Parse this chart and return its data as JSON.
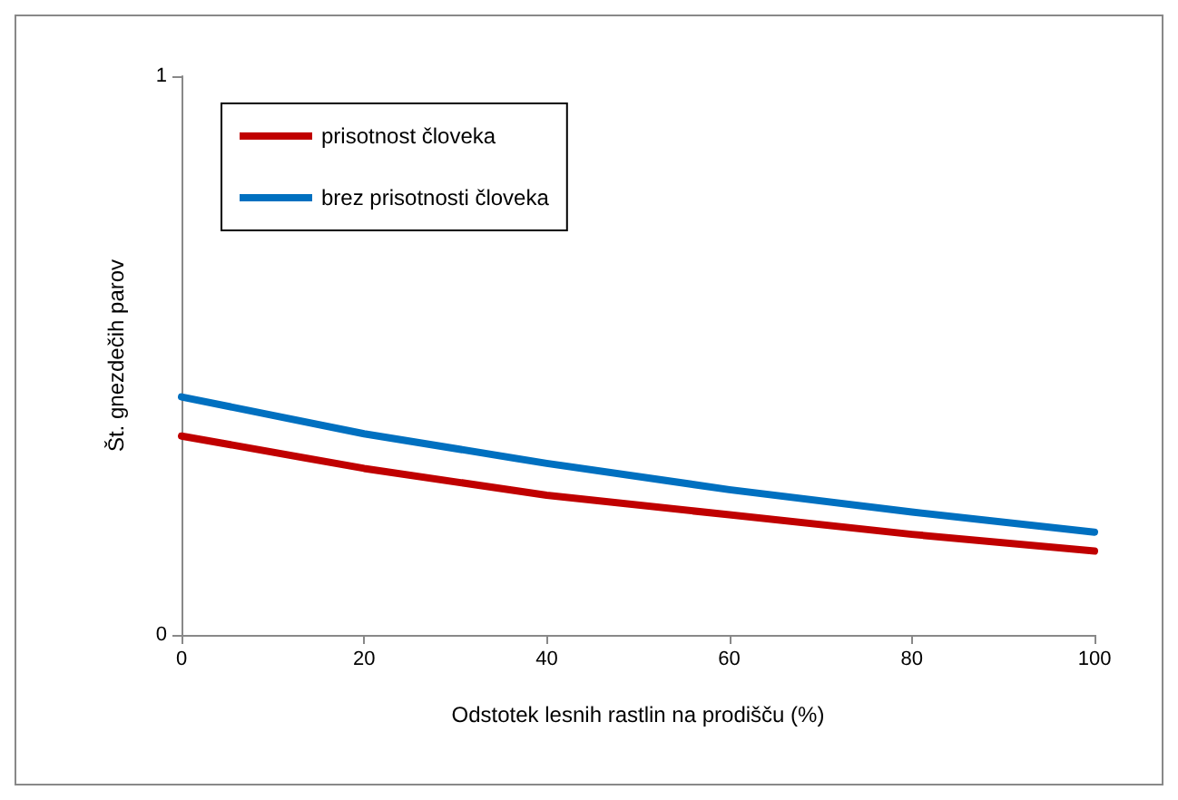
{
  "chart_data": {
    "type": "line",
    "xlabel": "Odstotek lesnih rastlin na prodišču (%)",
    "ylabel": "Št. gnezdečih parov",
    "x": [
      0,
      20,
      40,
      60,
      80,
      100
    ],
    "series": [
      {
        "name": "prisotnost človeka",
        "color": "#c00000",
        "values": [
          0.356,
          0.298,
          0.25,
          0.215,
          0.18,
          0.15
        ]
      },
      {
        "name": "brez prisotnosti človeka",
        "color": "#0070c0",
        "values": [
          0.426,
          0.36,
          0.307,
          0.26,
          0.22,
          0.184
        ]
      }
    ],
    "xlim": [
      0,
      100
    ],
    "xticks": [
      0,
      20,
      40,
      60,
      80,
      100
    ],
    "ylim": [
      0,
      1
    ],
    "yticks": [
      0,
      1
    ],
    "grid": false,
    "legend": "top left",
    "marker": "none",
    "line_style": "solid"
  }
}
